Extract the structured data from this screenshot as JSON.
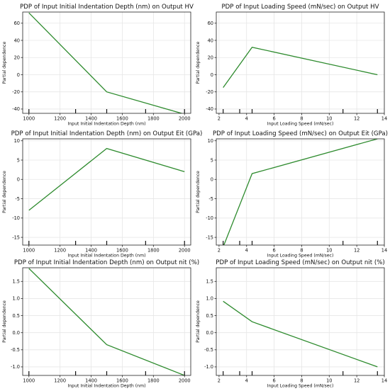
{
  "chart_data": [
    {
      "type": "line",
      "title": "PDP of Input Initial Indentation Depth (nm)  on Output HV",
      "xlabel": "Input Initial Indentation Depth (nm)",
      "ylabel": "Partial dependence",
      "xlim": [
        960,
        2040
      ],
      "ylim": [
        -45,
        73
      ],
      "xticks": [
        1000,
        1200,
        1400,
        1600,
        1800,
        2000
      ],
      "yticks": [
        -40,
        -20,
        0,
        20,
        40,
        60
      ],
      "x": [
        1000,
        1500,
        2000
      ],
      "y": [
        72,
        -20,
        -46
      ],
      "rug": [
        1000,
        1300,
        1500,
        1750,
        2000
      ],
      "color": "#2e8b2e",
      "grid": true
    },
    {
      "type": "line",
      "title": "PDP of Input Loading Speed (mN/sec) on Output HV",
      "xlabel": "Input Loading Speed (mN/sec)",
      "ylabel": "Partial dependence",
      "xlim": [
        1.8,
        14
      ],
      "ylim": [
        -45,
        73
      ],
      "xticks": [
        2,
        4,
        6,
        8,
        10,
        12,
        14
      ],
      "yticks": [
        -40,
        -20,
        0,
        20,
        40,
        60
      ],
      "x": [
        2.3,
        4.4,
        13.5
      ],
      "y": [
        -15,
        32,
        0
      ],
      "rug": [
        2.3,
        3.5,
        4.4,
        11,
        13.5
      ],
      "color": "#2e8b2e",
      "grid": true
    },
    {
      "type": "line",
      "title": "PDP of Input Initial Indentation Depth (nm)  on Output Eit (GPa)",
      "xlabel": "Input Initial Indentation Depth (nm)",
      "ylabel": "Partial dependence",
      "xlim": [
        960,
        2040
      ],
      "ylim": [
        -17,
        10.5
      ],
      "xticks": [
        1000,
        1200,
        1400,
        1600,
        1800,
        2000
      ],
      "yticks": [
        -15,
        -10,
        -5,
        0,
        5,
        10
      ],
      "x": [
        1000,
        1500,
        2000
      ],
      "y": [
        -8,
        8,
        2
      ],
      "rug": [
        1000,
        1300,
        1500,
        1750,
        2000
      ],
      "color": "#2e8b2e",
      "grid": true
    },
    {
      "type": "line",
      "title": "PDP of Input Loading Speed (mN/sec) on Output Eit (GPa)",
      "xlabel": "Input Loading Speed (mN/sec)",
      "ylabel": "Partial dependence",
      "xlim": [
        1.8,
        14
      ],
      "ylim": [
        -17,
        10.5
      ],
      "xticks": [
        2,
        4,
        6,
        8,
        10,
        12,
        14
      ],
      "yticks": [
        -15,
        -10,
        -5,
        0,
        5,
        10
      ],
      "x": [
        2.3,
        4.4,
        13.5
      ],
      "y": [
        -17.5,
        1.5,
        10.5
      ],
      "rug": [
        2.3,
        3.5,
        4.4,
        11,
        13.5
      ],
      "color": "#2e8b2e",
      "grid": true
    },
    {
      "type": "line",
      "title": "PDP of Input Initial Indentation Depth (nm)  on Output nit (%)",
      "xlabel": "Input Initial Indentation Depth (nm)",
      "ylabel": "Partial dependence",
      "xlim": [
        960,
        2040
      ],
      "ylim": [
        -1.25,
        1.9
      ],
      "xticks": [
        1000,
        1200,
        1400,
        1600,
        1800,
        2000
      ],
      "yticks": [
        -1.0,
        -0.5,
        0.0,
        0.5,
        1.0,
        1.5
      ],
      "ytick_labels": [
        "-1.0",
        "-0.5",
        "0.0",
        "0.5",
        "1.0",
        "1.5"
      ],
      "x": [
        1000,
        1500,
        2000
      ],
      "y": [
        1.88,
        -0.35,
        -1.25
      ],
      "rug": [
        1000,
        1300,
        1500,
        1750,
        2000
      ],
      "color": "#2e8b2e",
      "grid": true
    },
    {
      "type": "line",
      "title": "PDP of Input Loading Speed (mN/sec) on Output nit (%)",
      "xlabel": "Input Loading Speed (mN/sec)",
      "ylabel": "Partial dependence",
      "xlim": [
        1.8,
        14
      ],
      "ylim": [
        -1.25,
        1.9
      ],
      "xticks": [
        2,
        4,
        6,
        8,
        10,
        12,
        14
      ],
      "yticks": [
        -1.0,
        -0.5,
        0.0,
        0.5,
        1.0,
        1.5
      ],
      "ytick_labels": [
        "-1.0",
        "-0.5",
        "0.0",
        "0.5",
        "1.0",
        "1.5"
      ],
      "x": [
        2.3,
        4.4,
        13.5
      ],
      "y": [
        0.92,
        0.32,
        -1.0
      ],
      "rug": [
        2.3,
        3.5,
        4.4,
        11,
        13.5
      ],
      "color": "#2e8b2e",
      "grid": true
    }
  ]
}
